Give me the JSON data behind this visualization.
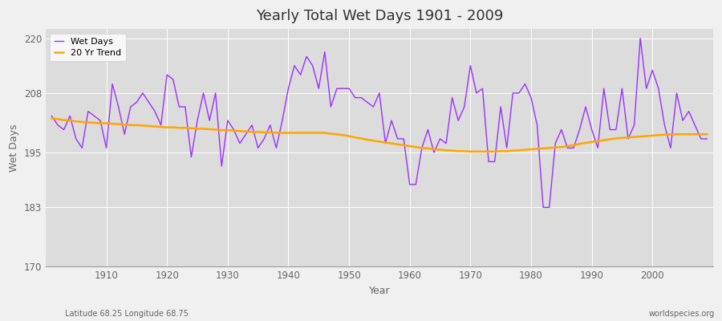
{
  "title": "Yearly Total Wet Days 1901 - 2009",
  "xlabel": "Year",
  "ylabel": "Wet Days",
  "subtitle_left": "Latitude 68.25 Longitude 68.75",
  "subtitle_right": "worldspecies.org",
  "ylim": [
    170,
    222
  ],
  "yticks": [
    170,
    183,
    195,
    208,
    220
  ],
  "xticks": [
    1910,
    1920,
    1930,
    1940,
    1950,
    1960,
    1970,
    1980,
    1990,
    2000
  ],
  "years": [
    1901,
    1902,
    1903,
    1904,
    1905,
    1906,
    1907,
    1908,
    1909,
    1910,
    1911,
    1912,
    1913,
    1914,
    1915,
    1916,
    1917,
    1918,
    1919,
    1920,
    1921,
    1922,
    1923,
    1924,
    1925,
    1926,
    1927,
    1928,
    1929,
    1930,
    1931,
    1932,
    1933,
    1934,
    1935,
    1936,
    1937,
    1938,
    1939,
    1940,
    1941,
    1942,
    1943,
    1944,
    1945,
    1946,
    1947,
    1948,
    1949,
    1950,
    1951,
    1952,
    1953,
    1954,
    1955,
    1956,
    1957,
    1958,
    1959,
    1960,
    1961,
    1962,
    1963,
    1964,
    1965,
    1966,
    1967,
    1968,
    1969,
    1970,
    1971,
    1972,
    1973,
    1974,
    1975,
    1976,
    1977,
    1978,
    1979,
    1980,
    1981,
    1982,
    1983,
    1984,
    1985,
    1986,
    1987,
    1988,
    1989,
    1990,
    1991,
    1992,
    1993,
    1994,
    1995,
    1996,
    1997,
    1998,
    1999,
    2000,
    2001,
    2002,
    2003,
    2004,
    2005,
    2006,
    2007,
    2008,
    2009
  ],
  "wet_days": [
    203,
    201,
    200,
    203,
    198,
    196,
    204,
    203,
    202,
    196,
    210,
    205,
    199,
    205,
    206,
    208,
    206,
    204,
    201,
    212,
    211,
    205,
    205,
    194,
    202,
    208,
    202,
    208,
    192,
    202,
    200,
    197,
    199,
    201,
    196,
    198,
    201,
    196,
    202,
    209,
    214,
    212,
    216,
    214,
    209,
    217,
    205,
    209,
    209,
    209,
    207,
    207,
    206,
    205,
    208,
    197,
    202,
    198,
    198,
    188,
    188,
    196,
    200,
    195,
    198,
    197,
    207,
    202,
    205,
    214,
    208,
    209,
    193,
    193,
    205,
    196,
    208,
    208,
    210,
    207,
    201,
    183,
    183,
    197,
    200,
    196,
    196,
    200,
    205,
    200,
    196,
    209,
    200,
    200,
    209,
    198,
    201,
    220,
    209,
    213,
    209,
    201,
    196,
    208,
    202,
    204,
    201,
    198,
    198
  ],
  "trend": [
    202.5,
    202.3,
    202.1,
    202.0,
    201.8,
    201.7,
    201.6,
    201.5,
    201.4,
    201.4,
    201.3,
    201.2,
    201.1,
    201.0,
    201.0,
    200.9,
    200.8,
    200.7,
    200.6,
    200.5,
    200.5,
    200.4,
    200.4,
    200.3,
    200.2,
    200.2,
    200.1,
    200.0,
    199.9,
    199.9,
    199.8,
    199.7,
    199.6,
    199.5,
    199.5,
    199.4,
    199.4,
    199.3,
    199.3,
    199.3,
    199.3,
    199.3,
    199.3,
    199.3,
    199.3,
    199.3,
    199.1,
    199.0,
    198.8,
    198.6,
    198.3,
    198.1,
    197.8,
    197.6,
    197.4,
    197.2,
    197.0,
    196.8,
    196.6,
    196.4,
    196.2,
    196.0,
    195.9,
    195.7,
    195.6,
    195.5,
    195.4,
    195.3,
    195.3,
    195.2,
    195.2,
    195.2,
    195.2,
    195.2,
    195.3,
    195.3,
    195.4,
    195.5,
    195.6,
    195.7,
    195.8,
    195.9,
    196.0,
    196.1,
    196.2,
    196.4,
    196.6,
    196.9,
    197.1,
    197.3,
    197.5,
    197.7,
    197.9,
    198.1,
    198.2,
    198.3,
    198.4,
    198.5,
    198.6,
    198.7,
    198.8,
    198.9,
    199.0,
    199.0,
    199.0,
    199.0,
    199.0,
    199.0,
    199.0
  ],
  "wet_days_color": "#9B30FF",
  "trend_color": "#FFA500",
  "figure_bg_color": "#F0F0F0",
  "plot_bg_color": "#DCDCDC",
  "grid_color": "#FFFFFF",
  "legend_bg_color": "#FFFFFF",
  "text_color": "#666666",
  "title_color": "#333333"
}
